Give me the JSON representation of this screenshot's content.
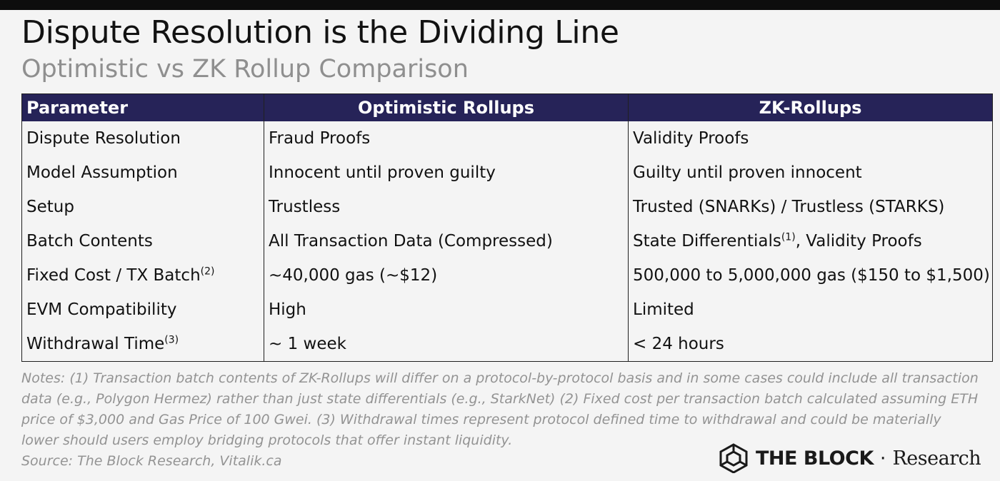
{
  "header": {
    "title": "Dispute Resolution is the Dividing Line",
    "subtitle": "Optimistic vs ZK Rollup Comparison"
  },
  "table": {
    "columns": [
      "Parameter",
      "Optimistic Rollups",
      "ZK-Rollups"
    ],
    "rows": [
      {
        "parameter": "Dispute Resolution",
        "parameter_note": "",
        "optimistic": "Fraud Proofs",
        "zk": "Validity Proofs",
        "zk_note": "",
        "zk_tail": ""
      },
      {
        "parameter": "Model Assumption",
        "parameter_note": "",
        "optimistic": "Innocent until proven guilty",
        "zk": "Guilty until proven innocent",
        "zk_note": "",
        "zk_tail": ""
      },
      {
        "parameter": "Setup",
        "parameter_note": "",
        "optimistic": "Trustless",
        "zk": "Trusted (SNARKs) / Trustless (STARKS)",
        "zk_note": "",
        "zk_tail": ""
      },
      {
        "parameter": "Batch Contents",
        "parameter_note": "",
        "optimistic": "All Transaction Data (Compressed)",
        "zk": "State Differentials",
        "zk_note": "(1)",
        "zk_tail": ", Validity Proofs"
      },
      {
        "parameter": "Fixed Cost / TX Batch",
        "parameter_note": "(2)",
        "optimistic": "~40,000 gas (~$12)",
        "zk": "500,000 to 5,000,000 gas ($150 to $1,500)",
        "zk_note": "",
        "zk_tail": ""
      },
      {
        "parameter": "EVM Compatibility",
        "parameter_note": "",
        "optimistic": "High",
        "zk": "Limited",
        "zk_note": "",
        "zk_tail": ""
      },
      {
        "parameter": "Withdrawal Time",
        "parameter_note": "(3)",
        "optimistic": "~ 1 week",
        "zk": "< 24 hours",
        "zk_note": "",
        "zk_tail": ""
      }
    ]
  },
  "notes": {
    "text": "Notes: (1) Transaction batch contents of ZK-Rollups will differ on a protocol-by-protocol basis and in some cases could include all transaction data (e.g., Polygon Hermez) rather than just state differentials (e.g., StarkNet) (2) Fixed cost per transaction batch calculated assuming ETH price of $3,000 and Gas Price of 100 Gwei. (3) Withdrawal times represent protocol defined time to withdrawal and could be materially lower should users employ bridging protocols that offer instant liquidity.",
    "source": "Source: The Block Research, Vitalik.ca"
  },
  "brand": {
    "name": "THE BLOCK",
    "separator": "·",
    "suffix": "Research",
    "icon": "cube-logo-icon"
  },
  "colors": {
    "header_bg": "#262358",
    "header_text": "#ffffff",
    "subtitle": "#8f8f8f",
    "notes": "#939393"
  }
}
